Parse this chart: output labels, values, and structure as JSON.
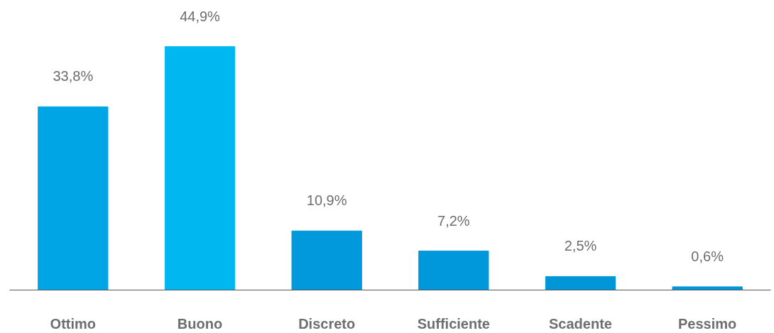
{
  "chart_data": {
    "type": "bar",
    "categories": [
      "Ottimo",
      "Buono",
      "Discreto",
      "Sufficiente",
      "Scadente",
      "Pessimo"
    ],
    "values": [
      33.8,
      44.9,
      10.9,
      7.2,
      2.5,
      0.6
    ],
    "colors": [
      "#00a5e5",
      "#00b7ef",
      "#0199dc",
      "#0098da",
      "#0096d8",
      "#0096d8"
    ],
    "value_labels": [
      "33,8%",
      "44,9%",
      "10,9%",
      "7,2%",
      "2,5%",
      "0,6%"
    ],
    "tick_labels": "x"
  }
}
